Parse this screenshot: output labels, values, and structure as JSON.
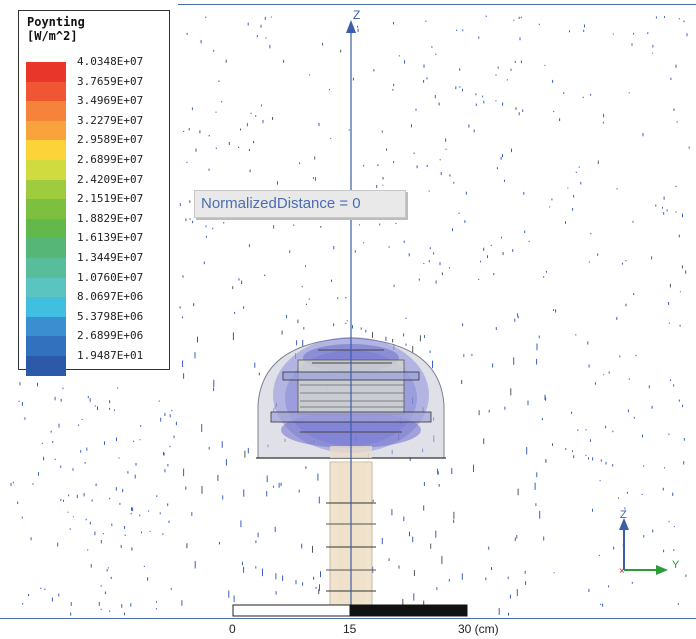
{
  "legend": {
    "title_line1": "Poynting",
    "title_line2": "[W/m^2]",
    "entries": [
      {
        "value": "4.0348E+07",
        "color": "#e8372a"
      },
      {
        "value": "3.7659E+07",
        "color": "#f05634"
      },
      {
        "value": "3.4969E+07",
        "color": "#f5833a"
      },
      {
        "value": "3.2279E+07",
        "color": "#f8a33c"
      },
      {
        "value": "2.9589E+07",
        "color": "#fcd43a"
      },
      {
        "value": "2.6899E+07",
        "color": "#cfdb3f"
      },
      {
        "value": "2.4209E+07",
        "color": "#9fcb3f"
      },
      {
        "value": "2.1519E+07",
        "color": "#7dbf3e"
      },
      {
        "value": "1.8829E+07",
        "color": "#62b84a"
      },
      {
        "value": "1.6139E+07",
        "color": "#55b678"
      },
      {
        "value": "1.3449E+07",
        "color": "#58bd9b"
      },
      {
        "value": "1.0760E+07",
        "color": "#5cc4c0"
      },
      {
        "value": "8.0697E+06",
        "color": "#40bfe0"
      },
      {
        "value": "5.3798E+06",
        "color": "#3b8fd0"
      },
      {
        "value": "2.6899E+06",
        "color": "#3271bd"
      },
      {
        "value": "1.9487E+01",
        "color": "#2d5aa8"
      }
    ]
  },
  "overlay_label": "NormalizedDistance = 0",
  "axis": {
    "z_label": "Z",
    "triad_z": "Z",
    "triad_y": "Y",
    "axis_color": "#3c5eaa"
  },
  "scale_bar": {
    "label_0": "0",
    "label_15": "15",
    "label_30": "30 (cm)"
  }
}
